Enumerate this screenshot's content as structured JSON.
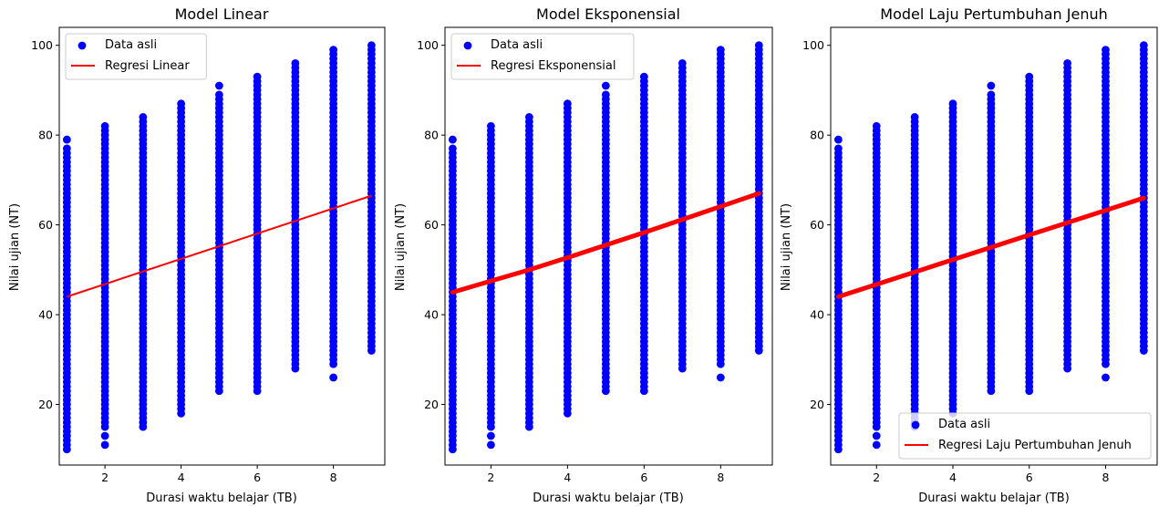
{
  "chart_data": [
    {
      "type": "scatter",
      "title": "Model Linear",
      "xlabel": "Durasi waktu belajar (TB)",
      "ylabel": "Nilai ujian (NT)",
      "xlim": [
        0.8,
        9.35
      ],
      "ylim": [
        6.5,
        104
      ],
      "xticks": [
        2,
        4,
        6,
        8
      ],
      "yticks": [
        20,
        40,
        60,
        80,
        100
      ],
      "legend_position": "upper-left",
      "series": [
        {
          "name": "Data asli",
          "kind": "scatter",
          "color": "#0000ff",
          "columns": [
            {
              "x": 1,
              "min": 10,
              "max": 77,
              "extra": [
                79
              ]
            },
            {
              "x": 2,
              "min": 15,
              "max": 82,
              "extra": [
                11,
                13
              ]
            },
            {
              "x": 3,
              "min": 15,
              "max": 84,
              "extra": []
            },
            {
              "x": 4,
              "min": 18,
              "max": 87,
              "extra": []
            },
            {
              "x": 5,
              "min": 23,
              "max": 89,
              "extra": [
                91
              ]
            },
            {
              "x": 6,
              "min": 23,
              "max": 93,
              "extra": []
            },
            {
              "x": 7,
              "min": 28,
              "max": 96,
              "extra": []
            },
            {
              "x": 8,
              "min": 29,
              "max": 99,
              "extra": [
                26
              ]
            },
            {
              "x": 9,
              "min": 32,
              "max": 100,
              "extra": []
            }
          ]
        },
        {
          "name": "Regresi Linear",
          "kind": "line",
          "color": "#ff0000",
          "x": [
            1,
            9
          ],
          "y": [
            44,
            66.5
          ]
        }
      ]
    },
    {
      "type": "scatter",
      "title": "Model Eksponensial",
      "xlabel": "Durasi waktu belajar (TB)",
      "ylabel": "Nilai ujian (NT)",
      "xlim": [
        0.8,
        9.35
      ],
      "ylim": [
        6.5,
        104
      ],
      "xticks": [
        2,
        4,
        6,
        8
      ],
      "yticks": [
        20,
        40,
        60,
        80,
        100
      ],
      "legend_position": "upper-left",
      "series": [
        {
          "name": "Data asli",
          "kind": "scatter",
          "color": "#0000ff",
          "columns": [
            {
              "x": 1,
              "min": 10,
              "max": 77,
              "extra": [
                79
              ]
            },
            {
              "x": 2,
              "min": 15,
              "max": 82,
              "extra": [
                11,
                13
              ]
            },
            {
              "x": 3,
              "min": 15,
              "max": 84,
              "extra": []
            },
            {
              "x": 4,
              "min": 18,
              "max": 87,
              "extra": []
            },
            {
              "x": 5,
              "min": 23,
              "max": 89,
              "extra": [
                91
              ]
            },
            {
              "x": 6,
              "min": 23,
              "max": 93,
              "extra": []
            },
            {
              "x": 7,
              "min": 28,
              "max": 96,
              "extra": []
            },
            {
              "x": 8,
              "min": 29,
              "max": 99,
              "extra": [
                26
              ]
            },
            {
              "x": 9,
              "min": 32,
              "max": 100,
              "extra": []
            }
          ]
        },
        {
          "name": "Regresi Eksponensial",
          "kind": "line",
          "color": "#ff0000",
          "thick": true,
          "x": [
            1,
            2,
            3,
            4,
            5,
            6,
            7,
            8,
            9
          ],
          "y": [
            45,
            47.5,
            50,
            52.7,
            55.5,
            58.3,
            61.2,
            64.1,
            67
          ]
        }
      ]
    },
    {
      "type": "scatter",
      "title": "Model Laju Pertumbuhan Jenuh",
      "xlabel": "Durasi waktu belajar (TB)",
      "ylabel": "Nilai ujian (NT)",
      "xlim": [
        0.8,
        9.35
      ],
      "ylim": [
        6.5,
        104
      ],
      "xticks": [
        2,
        4,
        6,
        8
      ],
      "yticks": [
        20,
        40,
        60,
        80,
        100
      ],
      "legend_position": "lower-right",
      "series": [
        {
          "name": "Data asli",
          "kind": "scatter",
          "color": "#0000ff",
          "columns": [
            {
              "x": 1,
              "min": 10,
              "max": 77,
              "extra": [
                79
              ]
            },
            {
              "x": 2,
              "min": 15,
              "max": 82,
              "extra": [
                11,
                13
              ]
            },
            {
              "x": 3,
              "min": 15,
              "max": 84,
              "extra": []
            },
            {
              "x": 4,
              "min": 18,
              "max": 87,
              "extra": []
            },
            {
              "x": 5,
              "min": 23,
              "max": 89,
              "extra": [
                91
              ]
            },
            {
              "x": 6,
              "min": 23,
              "max": 93,
              "extra": []
            },
            {
              "x": 7,
              "min": 28,
              "max": 96,
              "extra": []
            },
            {
              "x": 8,
              "min": 29,
              "max": 99,
              "extra": [
                26
              ]
            },
            {
              "x": 9,
              "min": 32,
              "max": 100,
              "extra": []
            }
          ]
        },
        {
          "name": "Regresi Laju Pertumbuhan Jenuh",
          "kind": "line",
          "color": "#ff0000",
          "thick": true,
          "x": [
            1,
            9
          ],
          "y": [
            44,
            66
          ]
        }
      ]
    }
  ]
}
